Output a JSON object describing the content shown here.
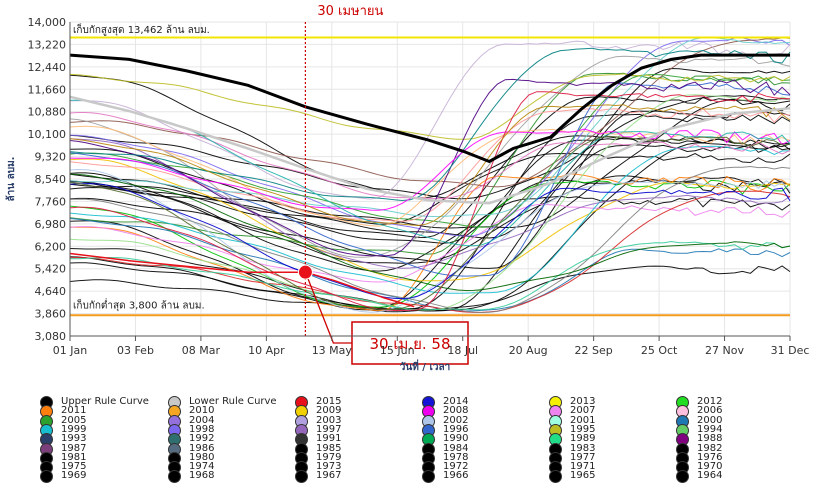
{
  "chart_data": {
    "type": "line",
    "xlabel": "วันที่ / เวลา",
    "ylabel": "ล้าน ลบม.",
    "x_ticks": [
      "01 Jan",
      "03 Feb",
      "08 Mar",
      "10 Apr",
      "13 May",
      "15 Jun",
      "18 Jul",
      "20 Aug",
      "22 Sep",
      "25 Oct",
      "27 Nov",
      "31 Dec"
    ],
    "y_ticks": [
      3080,
      3860,
      4640,
      5420,
      6200,
      6980,
      7760,
      8540,
      9320,
      10100,
      10880,
      11660,
      12440,
      13220,
      14000
    ],
    "ylim": [
      3080,
      14000
    ],
    "upper_limit": {
      "label": "เก็บกักสูงสุด 13,462 ล้าน ลบม.",
      "value": 13462,
      "color": "#f2e600"
    },
    "lower_limit": {
      "label": "เก็บกักต่ำสุด 3,800 ล้าน ลบม.",
      "value": 3800,
      "color": "#f39c1f"
    },
    "marker_line": {
      "label": "30 เมษายน",
      "day": 120,
      "color": "#cc0000"
    },
    "marker_point": {
      "day": 120,
      "value": 5300,
      "color": "#e8101a"
    },
    "annotation": {
      "label": "30 เม.ย. 58",
      "color": "#cc0000"
    },
    "series": [
      {
        "name": "Upper Rule Curve",
        "color": "#000000",
        "width": 3,
        "points": [
          [
            1,
            12850
          ],
          [
            31,
            12700
          ],
          [
            60,
            12300
          ],
          [
            91,
            11800
          ],
          [
            120,
            11050
          ],
          [
            151,
            10450
          ],
          [
            182,
            9900
          ],
          [
            200,
            9500
          ],
          [
            213,
            9150
          ],
          [
            225,
            9600
          ],
          [
            244,
            10000
          ],
          [
            260,
            11000
          ],
          [
            275,
            11800
          ],
          [
            290,
            12400
          ],
          [
            305,
            12700
          ],
          [
            320,
            12850
          ],
          [
            365,
            12850
          ]
        ]
      },
      {
        "name": "Lower Rule Curve",
        "color": "#c8c8c8",
        "width": 2.5,
        "points": [
          [
            1,
            11400
          ],
          [
            31,
            10900
          ],
          [
            60,
            10300
          ],
          [
            91,
            9600
          ],
          [
            120,
            8900
          ],
          [
            151,
            8200
          ],
          [
            182,
            7800
          ],
          [
            213,
            7700
          ],
          [
            244,
            8400
          ],
          [
            275,
            9400
          ],
          [
            305,
            10300
          ],
          [
            335,
            10800
          ],
          [
            365,
            11000
          ]
        ]
      },
      {
        "name": "2015",
        "color": "#e8101a",
        "width": 1.5,
        "points": [
          [
            1,
            5950
          ],
          [
            31,
            5700
          ],
          [
            60,
            5500
          ],
          [
            91,
            5300
          ],
          [
            120,
            5300
          ],
          [
            135,
            5000
          ],
          [
            160,
            4400
          ],
          [
            175,
            4100
          ]
        ]
      }
    ],
    "background_lines": {
      "colors": [
        "#000000",
        "#000000",
        "#000000",
        "#000000",
        "#000000",
        "#000000",
        "#000000",
        "#000000",
        "#000000",
        "#000000",
        "#000000",
        "#000000",
        "#000000",
        "#000000",
        "#000000",
        "#2a8f2a",
        "#00c000",
        "#ff7f0e",
        "#f0c000",
        "#ee82ee",
        "#7b68ee",
        "#1f77b4",
        "#17becf",
        "#9467bd",
        "#8c564b",
        "#2ca02c",
        "#d62728",
        "#a0a0a0",
        "#ff9896",
        "#98df8a",
        "#c5b0d5",
        "#aec7e8",
        "#7f7f7f",
        "#bcbd22",
        "#3366cc",
        "#66cccc",
        "#33cc99",
        "#ffbb78",
        "#e377c2",
        "#006400",
        "#4b0082",
        "#008080",
        "#ff00ff",
        "#0000cd",
        "#dc143c",
        "#20b2aa",
        "#b8860b",
        "#556b2f"
      ]
    },
    "legend": [
      {
        "label": "Upper Rule Curve",
        "color": "#000000"
      },
      {
        "label": "Lower Rule Curve",
        "color": "#c8c8c8"
      },
      {
        "label": "2015",
        "color": "#e8101a"
      },
      {
        "label": "2014",
        "color": "#1414d6"
      },
      {
        "label": "2013",
        "color": "#f5f000"
      },
      {
        "label": "2012",
        "color": "#22dd22"
      },
      {
        "label": "2011",
        "color": "#ff7f0e"
      },
      {
        "label": "2010",
        "color": "#f5a623"
      },
      {
        "label": "2009",
        "color": "#f0d000"
      },
      {
        "label": "2008",
        "color": "#ee00ee"
      },
      {
        "label": "2007",
        "color": "#ee82ee"
      },
      {
        "label": "2006",
        "color": "#ffc0e0"
      },
      {
        "label": "2005",
        "color": "#2ca02c"
      },
      {
        "label": "2004",
        "color": "#9370db"
      },
      {
        "label": "2003",
        "color": "#b0a0e0"
      },
      {
        "label": "2002",
        "color": "#aec7e8"
      },
      {
        "label": "2001",
        "color": "#a0ffe0"
      },
      {
        "label": "2000",
        "color": "#1f77b4"
      },
      {
        "label": "1999",
        "color": "#17becf"
      },
      {
        "label": "1998",
        "color": "#7b68ee"
      },
      {
        "label": "1997",
        "color": "#9467bd"
      },
      {
        "label": "1996",
        "color": "#3366cc"
      },
      {
        "label": "1995",
        "color": "#bcbd22"
      },
      {
        "label": "1994",
        "color": "#66cc66"
      },
      {
        "label": "1993",
        "color": "#2b3f6b"
      },
      {
        "label": "1992",
        "color": "#2f6f6f"
      },
      {
        "label": "1991",
        "color": "#333333"
      },
      {
        "label": "1990",
        "color": "#00aa55"
      },
      {
        "label": "1989",
        "color": "#22dd88"
      },
      {
        "label": "1988",
        "color": "#800080"
      },
      {
        "label": "1987",
        "color": "#7b3f7b"
      },
      {
        "label": "1986",
        "color": "#556b7f"
      },
      {
        "label": "1985",
        "color": "#000000"
      },
      {
        "label": "1984",
        "color": "#000000"
      },
      {
        "label": "1983",
        "color": "#000000"
      },
      {
        "label": "1982",
        "color": "#000000"
      },
      {
        "label": "1981",
        "color": "#000000"
      },
      {
        "label": "1980",
        "color": "#000000"
      },
      {
        "label": "1979",
        "color": "#000000"
      },
      {
        "label": "1978",
        "color": "#000000"
      },
      {
        "label": "1977",
        "color": "#000000"
      },
      {
        "label": "1976",
        "color": "#000000"
      },
      {
        "label": "1975",
        "color": "#000000"
      },
      {
        "label": "1974",
        "color": "#000000"
      },
      {
        "label": "1973",
        "color": "#000000"
      },
      {
        "label": "1972",
        "color": "#000000"
      },
      {
        "label": "1971",
        "color": "#000000"
      },
      {
        "label": "1970",
        "color": "#000000"
      },
      {
        "label": "1969",
        "color": "#000000"
      },
      {
        "label": "1968",
        "color": "#000000"
      },
      {
        "label": "1967",
        "color": "#000000"
      },
      {
        "label": "1966",
        "color": "#000000"
      },
      {
        "label": "1965",
        "color": "#000000"
      },
      {
        "label": "1964",
        "color": "#000000"
      }
    ]
  }
}
